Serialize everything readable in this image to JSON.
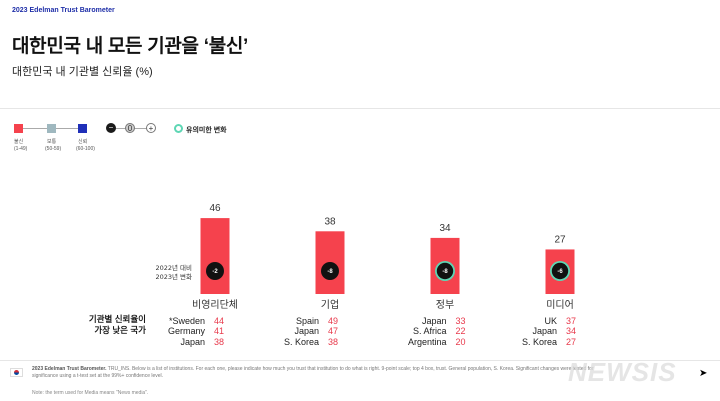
{
  "header": {
    "brand": "2023 Edelman Trust Barometer",
    "title": "대한민국 내 모든 기관을 ‘불신’",
    "subtitle": "대한민국 내 기관별 신뢰율 (%)"
  },
  "legend": {
    "distrust_label": "불신",
    "distrust_range": "(1-49)",
    "neutral_label": "보통",
    "neutral_range": "(50-59)",
    "trust_label": "신뢰",
    "trust_range": "(60-100)",
    "minus_symbol": "−",
    "zero_symbol": "0",
    "plus_symbol": "+",
    "significant_label": "유의미한 변화"
  },
  "colors": {
    "distrust": "#f5424d",
    "neutral": "#9fb8bf",
    "trust": "#1f2fb8",
    "change_circle": "#111111",
    "significant_ring": "#5ed6b4",
    "low_country_value": "#e8394b"
  },
  "chart_data": {
    "type": "bar",
    "title": "대한민국 내 모든 기관을 ‘불신’",
    "subtitle": "대한민국 내 기관별 신뢰율 (%)",
    "categories": [
      "비영리단체",
      "기업",
      "정부",
      "미디어"
    ],
    "values": [
      46,
      38,
      34,
      27
    ],
    "change_vs_2022": [
      -2,
      -8,
      -8,
      -6
    ],
    "significant_change": [
      false,
      false,
      true,
      true
    ],
    "change_label": "2022년 대비\n2023년 변화",
    "ylim": [
      0,
      60
    ]
  },
  "lowest_trust": {
    "label": "기관별 신뢰율이\n가장 낮은 국가",
    "groups": [
      {
        "rows": [
          {
            "country": "*Sweden",
            "value": "44"
          },
          {
            "country": "Germany",
            "value": "41"
          },
          {
            "country": "Japan",
            "value": "38"
          }
        ]
      },
      {
        "rows": [
          {
            "country": "Spain",
            "value": "49"
          },
          {
            "country": "Japan",
            "value": "47"
          },
          {
            "country": "S. Korea",
            "value": "38"
          }
        ]
      },
      {
        "rows": [
          {
            "country": "Japan",
            "value": "33"
          },
          {
            "country": "S. Africa",
            "value": "22"
          },
          {
            "country": "Argentina",
            "value": "20"
          }
        ]
      },
      {
        "rows": [
          {
            "country": "UK",
            "value": "37"
          },
          {
            "country": "Japan",
            "value": "34"
          },
          {
            "country": "S. Korea",
            "value": "27"
          }
        ]
      }
    ]
  },
  "footer": {
    "source_label": "2023 Edelman Trust Barometer.",
    "source_text": "TRU_INS. Below is a list of institutions. For each one, please indicate how much you trust that institution to do what is right. 9-point scale; top 4 box, trust. General population, S. Korea. Significant changes were tested for significance using a t-test set at the 99%+ confidence level.",
    "note": "Note: the term used for Media means \"News media\".",
    "watermark": "NEWSIS",
    "next_arrow": "➤"
  }
}
